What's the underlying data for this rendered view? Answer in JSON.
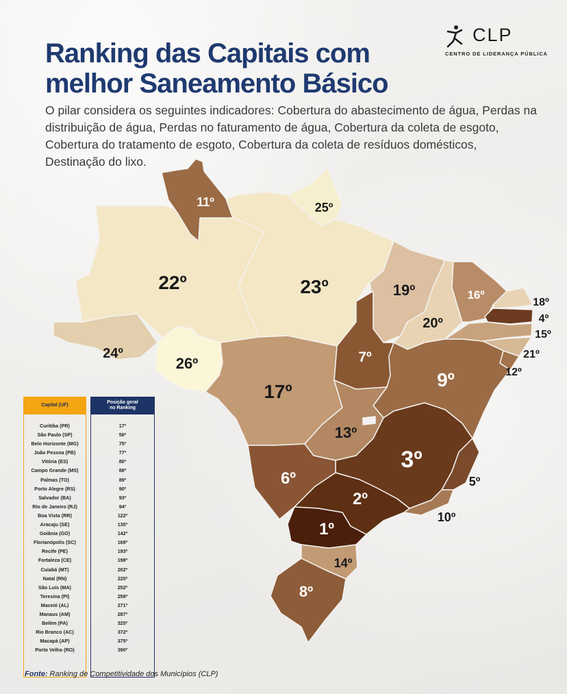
{
  "header": {
    "title_line1": "Ranking das Capitais com",
    "title_line2": "melhor Saneamento Básico",
    "subtitle": "O pilar considera os seguintes indicadores: Cobertura do abastecimento de água, Perdas na distribuição de água, Perdas no faturamento de água, Cobertura da coleta de esgoto, Cobertura do tratamento de esgoto, Cobertura da coleta de resíduos domésticos, Destinação do lixo."
  },
  "logo": {
    "brand": "CLP",
    "tagline": "CENTRO DE LIDERANÇA PÚBLICA"
  },
  "map": {
    "states": [
      {
        "uf": "RR",
        "rank": "11º",
        "color": "#9a6b45"
      },
      {
        "uf": "AP",
        "rank": "25º",
        "color": "#f6efcd"
      },
      {
        "uf": "AM",
        "rank": "22º",
        "color": "#f3e7c6"
      },
      {
        "uf": "PA",
        "rank": "23º",
        "color": "#f3e7c6"
      },
      {
        "uf": "MA",
        "rank": "19º",
        "color": "#dcc0a1"
      },
      {
        "uf": "CE",
        "rank": "16º",
        "color": "#b98c68"
      },
      {
        "uf": "RN",
        "rank": "18º",
        "color": "#e8d4b4"
      },
      {
        "uf": "PB",
        "rank": "4º",
        "color": "#6b3a1f"
      },
      {
        "uf": "PE",
        "rank": "15º",
        "color": "#c8a27d"
      },
      {
        "uf": "AL",
        "rank": "21º",
        "color": "#d6b894"
      },
      {
        "uf": "SE",
        "rank": "12º",
        "color": "#a3744d"
      },
      {
        "uf": "PI",
        "rank": "20º",
        "color": "#e8d4b4"
      },
      {
        "uf": "AC",
        "rank": "24º",
        "color": "#e3cfae"
      },
      {
        "uf": "RO",
        "rank": "26º",
        "color": "#fbf6d8"
      },
      {
        "uf": "MT",
        "rank": "17º",
        "color": "#c29a74"
      },
      {
        "uf": "TO",
        "rank": "7º",
        "color": "#8a5733"
      },
      {
        "uf": "BA",
        "rank": "9º",
        "color": "#9b6b45"
      },
      {
        "uf": "GO",
        "rank": "13º",
        "color": "#b28762"
      },
      {
        "uf": "MG",
        "rank": "3º",
        "color": "#6a3a1c"
      },
      {
        "uf": "MS",
        "rank": "6º",
        "color": "#8a5534"
      },
      {
        "uf": "ES",
        "rank": "5º",
        "color": "#7a4a2a"
      },
      {
        "uf": "SP",
        "rank": "2º",
        "color": "#5e2f12"
      },
      {
        "uf": "RJ",
        "rank": "10º",
        "color": "#a67a55"
      },
      {
        "uf": "PR",
        "rank": "1º",
        "color": "#4a1f0b"
      },
      {
        "uf": "SC",
        "rank": "14º",
        "color": "#c29a74"
      },
      {
        "uf": "RS",
        "rank": "8º",
        "color": "#8d5c38"
      },
      {
        "uf": "DF",
        "rank": "",
        "color": "#f3f2f0"
      }
    ]
  },
  "table": {
    "header_capital": "Capital (UF)",
    "header_rank_line1": "Posição geral",
    "header_rank_line2": "no Ranking",
    "rows": [
      {
        "capital": "Curitiba (PR)",
        "rank": "17º"
      },
      {
        "capital": "São Paulo (SP)",
        "rank": "56º"
      },
      {
        "capital": "Belo Horizonte (MG)",
        "rank": "75º"
      },
      {
        "capital": "João Pessoa (PB)",
        "rank": "77º"
      },
      {
        "capital": "Vitória (ES)",
        "rank": "80º"
      },
      {
        "capital": "Campo Grande (MS)",
        "rank": "88º"
      },
      {
        "capital": "Palmas (TO)",
        "rank": "89º"
      },
      {
        "capital": "Porto Alegre (RS)",
        "rank": "90º"
      },
      {
        "capital": "Salvador (BA)",
        "rank": "93º"
      },
      {
        "capital": "Rio de Janeiro (RJ)",
        "rank": "94º"
      },
      {
        "capital": "Boa Vista (RR)",
        "rank": "122º"
      },
      {
        "capital": "Aracaju (SE)",
        "rank": "135º"
      },
      {
        "capital": "Goiânia (GO)",
        "rank": "142º"
      },
      {
        "capital": "Florianópolis (SC)",
        "rank": "169º"
      },
      {
        "capital": "Recife (PE)",
        "rank": "193º"
      },
      {
        "capital": "Fortaleza (CE)",
        "rank": "198º"
      },
      {
        "capital": "Cuiabá (MT)",
        "rank": "202º"
      },
      {
        "capital": "Natal (RN)",
        "rank": "225º"
      },
      {
        "capital": "São Luís (MA)",
        "rank": "252º"
      },
      {
        "capital": "Teresina (PI)",
        "rank": "259º"
      },
      {
        "capital": "Maceió (AL)",
        "rank": "271º"
      },
      {
        "capital": "Manaus (AM)",
        "rank": "287º"
      },
      {
        "capital": "Belém (PA)",
        "rank": "325º"
      },
      {
        "capital": "Rio Branco (AC)",
        "rank": "372º"
      },
      {
        "capital": "Macapá (AP)",
        "rank": "375º"
      },
      {
        "capital": "Porto Velho (RO)",
        "rank": "390º"
      }
    ]
  },
  "footer": {
    "source_label": "Fonte:",
    "source_text": " Ranking de Competitividade dos  Municípios (CLP)"
  }
}
